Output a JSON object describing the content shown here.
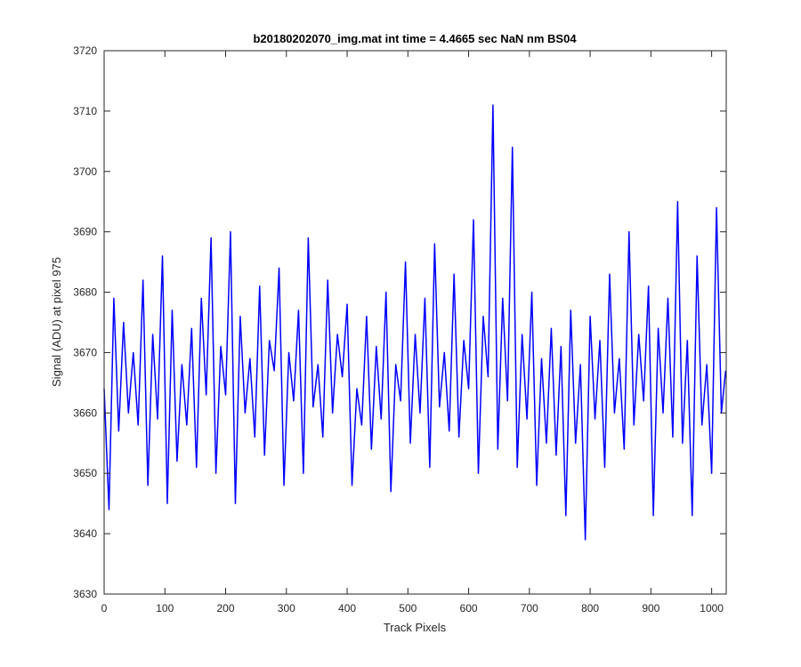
{
  "chart_data": {
    "type": "line",
    "title": "b20180202070_img.mat int time = 4.4665 sec  NaN nm BS04",
    "xlabel": "Track Pixels",
    "ylabel": "Signal (ADU) at pixel 975",
    "xlim": [
      0,
      1024
    ],
    "ylim": [
      3630,
      3720
    ],
    "xticks": [
      0,
      100,
      200,
      300,
      400,
      500,
      600,
      700,
      800,
      900,
      1000
    ],
    "yticks": [
      3630,
      3640,
      3650,
      3660,
      3670,
      3680,
      3690,
      3700,
      3710,
      3720
    ],
    "grid": false,
    "series": [
      {
        "color": "#0000ff",
        "x": [
          0,
          8,
          16,
          24,
          32,
          40,
          48,
          56,
          64,
          72,
          80,
          88,
          96,
          104,
          112,
          120,
          128,
          136,
          144,
          152,
          160,
          168,
          176,
          184,
          192,
          200,
          208,
          216,
          224,
          232,
          240,
          248,
          256,
          264,
          272,
          280,
          288,
          296,
          304,
          312,
          320,
          328,
          336,
          344,
          352,
          360,
          368,
          376,
          384,
          392,
          400,
          408,
          416,
          424,
          432,
          440,
          448,
          456,
          464,
          472,
          480,
          488,
          496,
          504,
          512,
          520,
          528,
          536,
          544,
          552,
          560,
          568,
          576,
          584,
          592,
          600,
          608,
          616,
          624,
          632,
          640,
          648,
          656,
          664,
          672,
          680,
          688,
          696,
          704,
          712,
          720,
          728,
          736,
          744,
          752,
          760,
          768,
          776,
          784,
          792,
          800,
          808,
          816,
          824,
          832,
          840,
          848,
          856,
          864,
          872,
          880,
          888,
          896,
          904,
          912,
          920,
          928,
          936,
          944,
          952,
          960,
          968,
          976,
          984,
          992,
          1000,
          1008,
          1016,
          1023
        ],
        "y": [
          3664,
          3644,
          3679,
          3657,
          3675,
          3660,
          3670,
          3658,
          3682,
          3648,
          3673,
          3659,
          3686,
          3645,
          3677,
          3652,
          3668,
          3658,
          3674,
          3651,
          3679,
          3663,
          3689,
          3650,
          3671,
          3663,
          3690,
          3645,
          3676,
          3660,
          3669,
          3656,
          3681,
          3653,
          3672,
          3667,
          3684,
          3648,
          3670,
          3662,
          3677,
          3650,
          3689,
          3661,
          3668,
          3656,
          3682,
          3660,
          3673,
          3666,
          3678,
          3648,
          3664,
          3658,
          3676,
          3654,
          3671,
          3659,
          3680,
          3647,
          3668,
          3662,
          3685,
          3655,
          3673,
          3660,
          3679,
          3651,
          3688,
          3661,
          3670,
          3657,
          3683,
          3656,
          3672,
          3664,
          3692,
          3650,
          3676,
          3666,
          3711,
          3654,
          3679,
          3662,
          3704,
          3651,
          3673,
          3659,
          3680,
          3648,
          3669,
          3655,
          3674,
          3653,
          3671,
          3643,
          3677,
          3655,
          3668,
          3639,
          3676,
          3659,
          3672,
          3651,
          3683,
          3660,
          3669,
          3654,
          3690,
          3658,
          3673,
          3662,
          3681,
          3643,
          3674,
          3660,
          3679,
          3656,
          3695,
          3655,
          3672,
          3643,
          3686,
          3658,
          3668,
          3650,
          3694,
          3660,
          3667
        ]
      }
    ]
  }
}
